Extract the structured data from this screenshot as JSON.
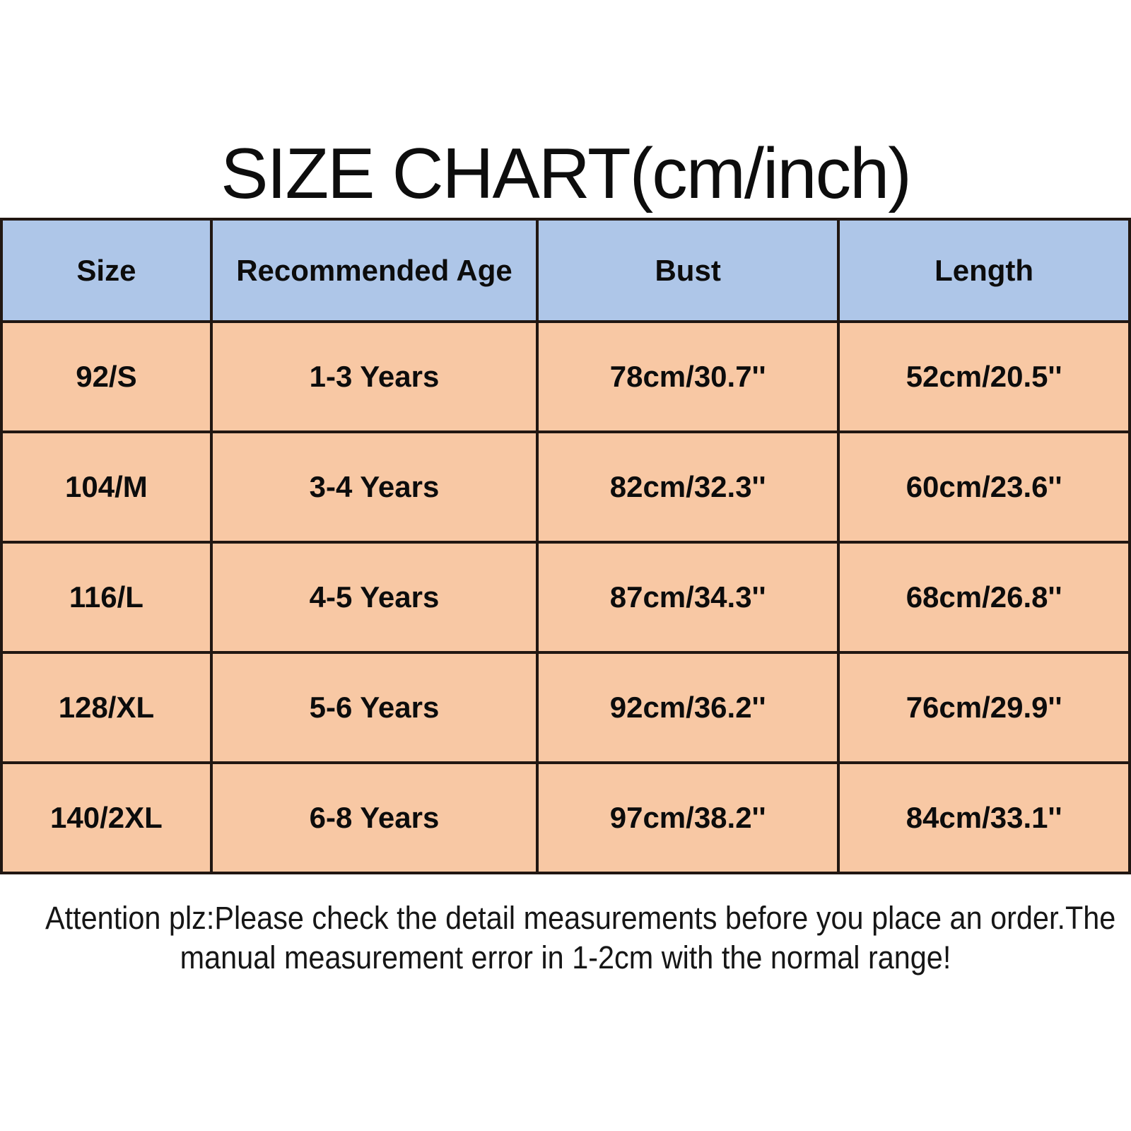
{
  "title": "SIZE CHART(cm/inch)",
  "chart_data": {
    "type": "table",
    "title": "SIZE CHART(cm/inch)",
    "columns": [
      "Size",
      "Recommended Age",
      "Bust",
      "Length"
    ],
    "rows": [
      [
        "92/S",
        "1-3 Years",
        "78cm/30.7''",
        "52cm/20.5''"
      ],
      [
        "104/M",
        "3-4 Years",
        "82cm/32.3''",
        "60cm/23.6''"
      ],
      [
        "116/L",
        "4-5 Years",
        "87cm/34.3''",
        "68cm/26.8''"
      ],
      [
        "128/XL",
        "5-6 Years",
        "92cm/36.2''",
        "76cm/29.9''"
      ],
      [
        "140/2XL",
        "6-8 Years",
        "97cm/38.2''",
        "84cm/33.1''"
      ]
    ],
    "note_lines": [
      "Attention plz:Please check the detail measurements before you place an order.The",
      "manual measurement error in 1-2cm with the normal range!"
    ],
    "layout": {
      "header_bg": "#aec6e8",
      "row_bg": "#f8c8a4",
      "border_color": "#211712",
      "text_color": "#0c0c0c",
      "grid": "full-borders",
      "legend": "none"
    }
  }
}
